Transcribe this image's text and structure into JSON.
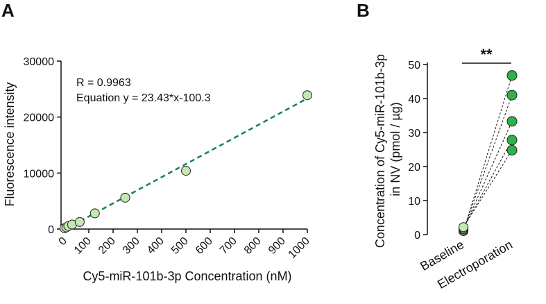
{
  "chart_data": [
    {
      "panel": "A",
      "type": "scatter",
      "xlabel": "Cy5-miR-101b-3p Concentration (nM)",
      "ylabel": "Fluorescence intensity",
      "xlim": [
        0,
        1000
      ],
      "ylim": [
        0,
        30000
      ],
      "xticks": [
        0,
        100,
        200,
        300,
        400,
        500,
        600,
        700,
        800,
        900,
        1000
      ],
      "yticks": [
        0,
        10000,
        20000,
        30000
      ],
      "x": [
        0,
        7.8,
        15.6,
        31.25,
        62.5,
        125,
        250,
        500,
        1000
      ],
      "y": [
        150,
        300,
        550,
        800,
        1250,
        2800,
        5600,
        10400,
        23900
      ],
      "fit": {
        "slope": 23.43,
        "intercept": -100.3,
        "style": "dashed"
      },
      "annotations": [
        "R = 0.9963",
        "Equation y = 23.43*x-100.3"
      ],
      "point_color": "#c5e8b3",
      "line_color": "#118256"
    },
    {
      "panel": "B",
      "type": "paired-scatter",
      "ylabel": "Concentration of Cy5-miR-101b-3p in NV (pmol / µg)",
      "categories": [
        "Baseline",
        "Electroporation"
      ],
      "ylim": [
        0,
        50
      ],
      "yticks": [
        0,
        10,
        20,
        30,
        40,
        50
      ],
      "pairs": [
        [
          1.0,
          46.8
        ],
        [
          1.3,
          41.0
        ],
        [
          1.6,
          33.3
        ],
        [
          1.9,
          27.8
        ],
        [
          2.2,
          24.8
        ]
      ],
      "significance": "**",
      "baseline_color": "#c5e8b3",
      "treatment_color": "#2db34a"
    }
  ]
}
